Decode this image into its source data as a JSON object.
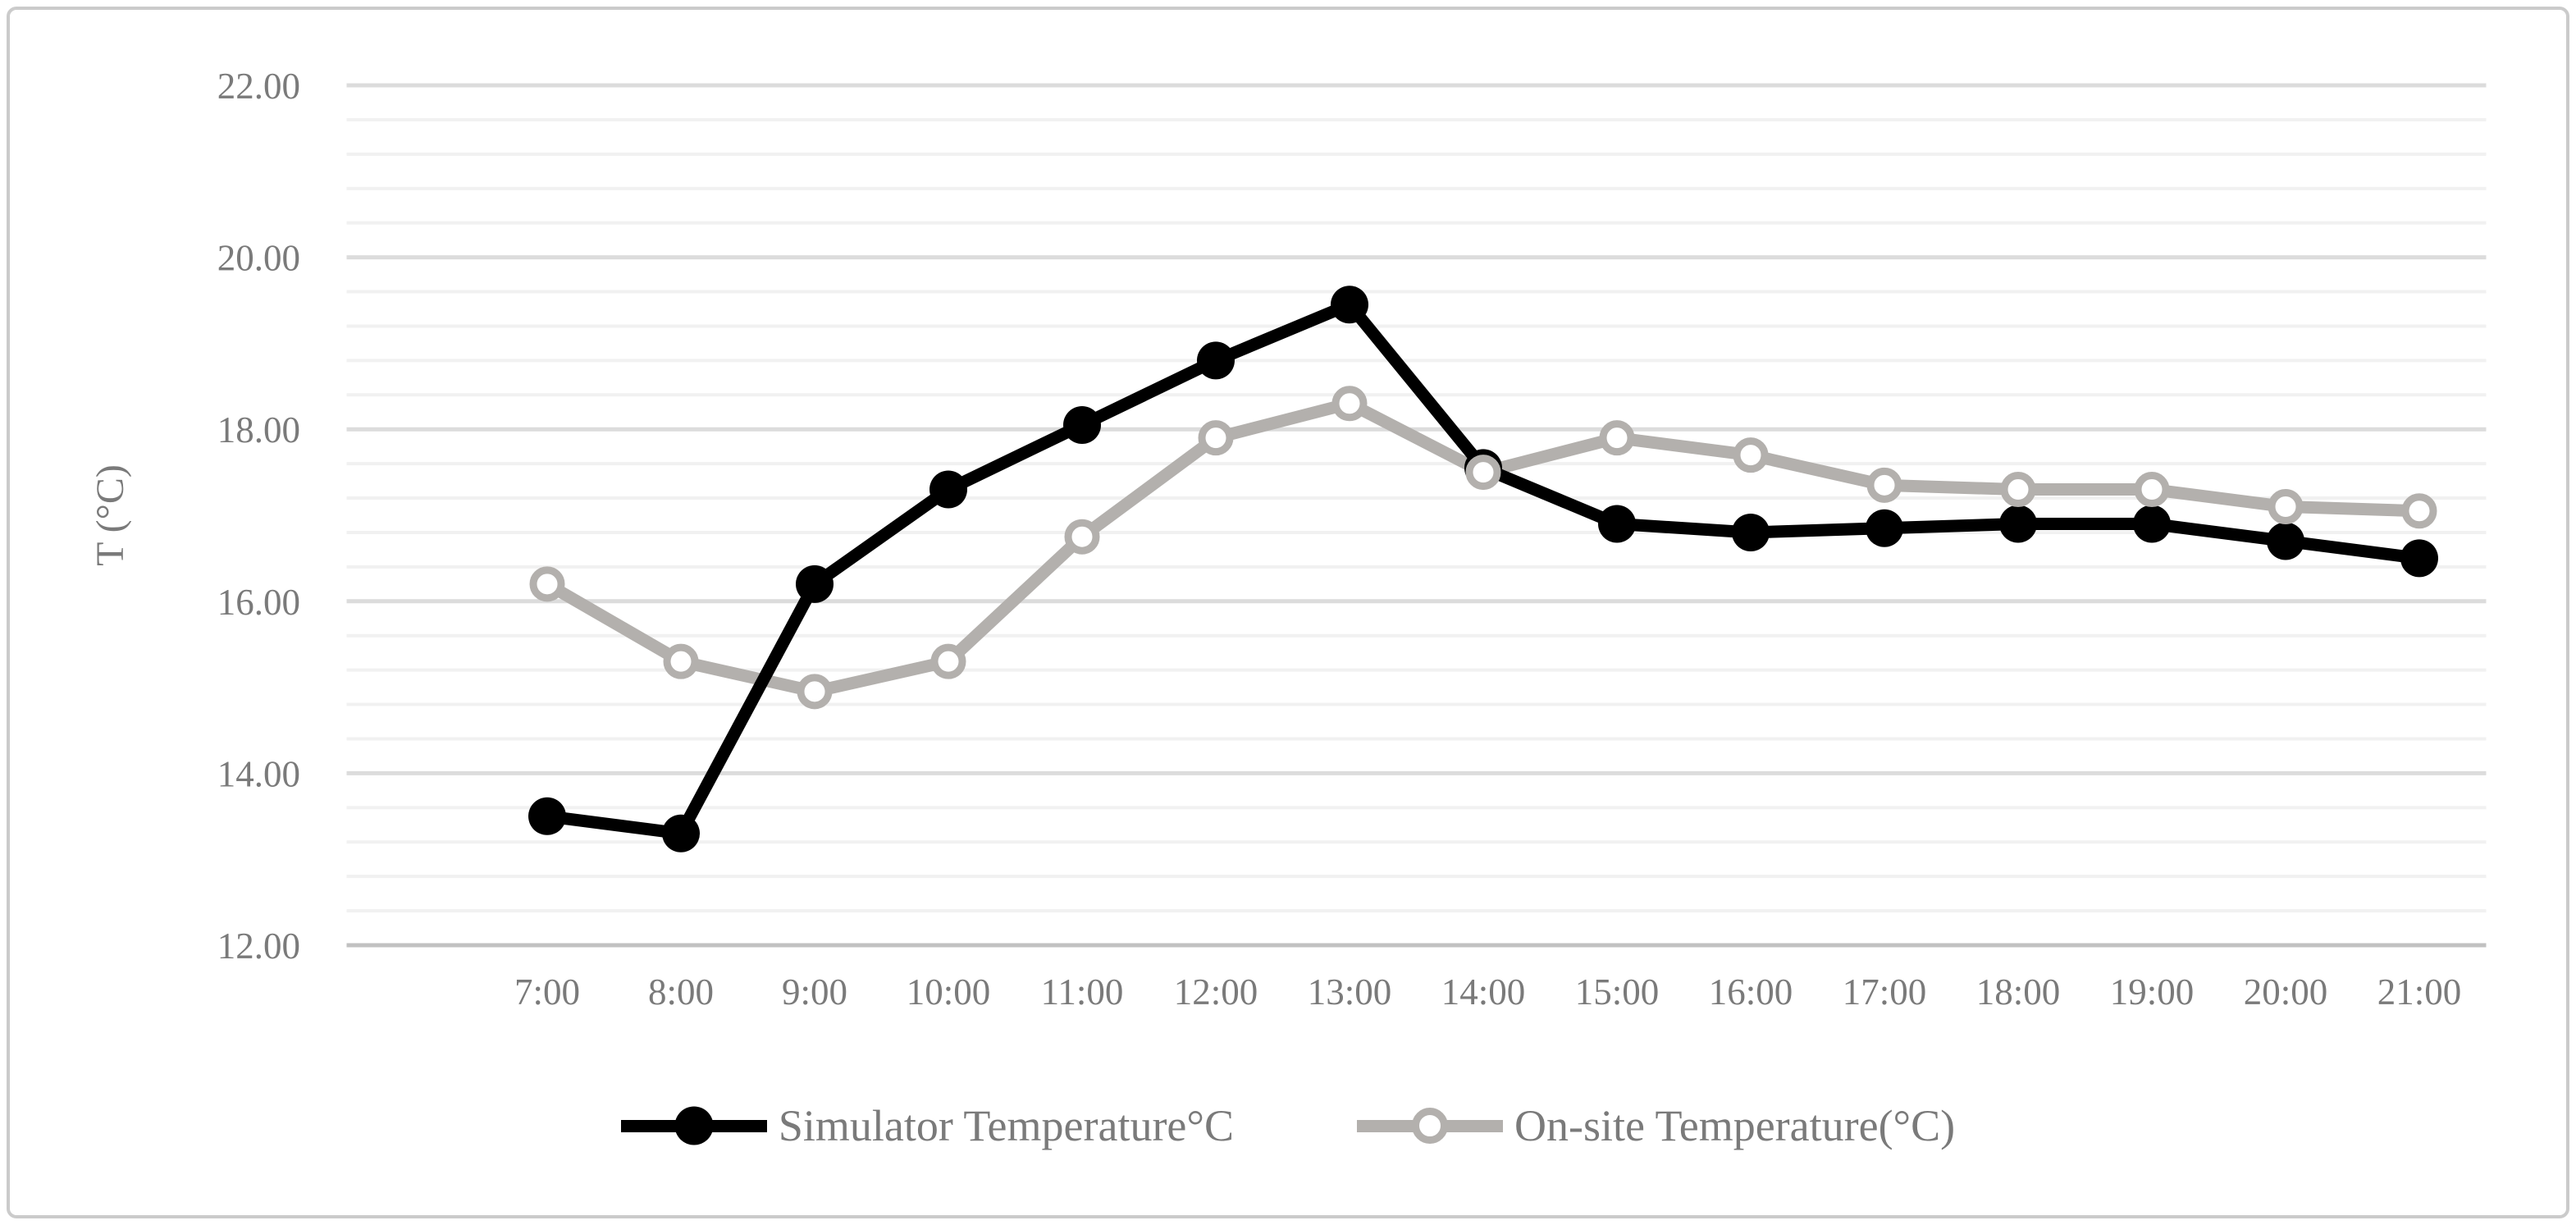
{
  "figure": {
    "background": "#ffffff",
    "border_color": "#cbcbcb"
  },
  "chart_data": {
    "type": "line",
    "title": "",
    "xlabel": "",
    "ylabel": "T (°C)",
    "ylim": [
      12,
      22
    ],
    "y_major_unit": 2,
    "y_minor_unit": 0.4,
    "grid": true,
    "legend_position": "bottom",
    "y_tick_labels": [
      "22.00",
      "20.00",
      "18.00",
      "16.00",
      "14.00",
      "12.00"
    ],
    "categories": [
      "7:00",
      "8:00",
      "9:00",
      "10:00",
      "11:00",
      "12:00",
      "13:00",
      "14:00",
      "15:00",
      "16:00",
      "17:00",
      "18:00",
      "19:00",
      "20:00",
      "21:00"
    ],
    "series": [
      {
        "name": "Simulator Temperature°C",
        "color": "#000000",
        "marker": "filled-circle",
        "values": [
          13.5,
          13.3,
          16.2,
          17.3,
          18.05,
          18.8,
          19.45,
          17.55,
          16.9,
          16.8,
          16.85,
          16.9,
          16.9,
          16.7,
          16.5
        ]
      },
      {
        "name": "On-site Temperature(°C)",
        "color": "#b3b0ad",
        "marker": "open-circle",
        "values": [
          16.2,
          15.3,
          14.95,
          15.3,
          16.75,
          17.9,
          18.3,
          17.5,
          17.9,
          17.7,
          17.35,
          17.3,
          17.3,
          17.1,
          17.05
        ]
      }
    ],
    "colors": {
      "minor_grid": "#f1f1f1",
      "major_grid": "#dcdcdc",
      "axis_line": "#c1c1c1",
      "tick_text": "#7a7a7a"
    }
  }
}
